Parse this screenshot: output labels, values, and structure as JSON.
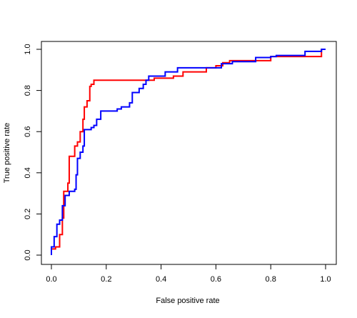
{
  "chart_data": {
    "type": "line",
    "step": true,
    "xlabel": "False positive rate",
    "ylabel": "True positive rate",
    "xlim": [
      0,
      1
    ],
    "ylim": [
      0,
      1
    ],
    "x_ticks": [
      0.0,
      0.2,
      0.4,
      0.6,
      0.8,
      1.0
    ],
    "x_tick_labels": [
      "0.0",
      "0.2",
      "0.4",
      "0.6",
      "0.8",
      "1.0"
    ],
    "y_ticks": [
      0.0,
      0.2,
      0.4,
      0.6,
      0.8,
      1.0
    ],
    "y_tick_labels": [
      "0.0",
      "0.2",
      "0.4",
      "0.6",
      "0.8",
      "1.0"
    ],
    "grid": false,
    "legend": "none",
    "series": [
      {
        "color": "#ff0000",
        "points": [
          [
            0.0,
            0.0
          ],
          [
            0.0,
            0.03
          ],
          [
            0.015,
            0.03
          ],
          [
            0.015,
            0.04
          ],
          [
            0.03,
            0.04
          ],
          [
            0.03,
            0.1
          ],
          [
            0.04,
            0.1
          ],
          [
            0.04,
            0.18
          ],
          [
            0.045,
            0.18
          ],
          [
            0.045,
            0.31
          ],
          [
            0.06,
            0.31
          ],
          [
            0.06,
            0.35
          ],
          [
            0.065,
            0.35
          ],
          [
            0.065,
            0.48
          ],
          [
            0.085,
            0.48
          ],
          [
            0.085,
            0.53
          ],
          [
            0.095,
            0.53
          ],
          [
            0.095,
            0.55
          ],
          [
            0.105,
            0.55
          ],
          [
            0.105,
            0.6
          ],
          [
            0.115,
            0.6
          ],
          [
            0.115,
            0.66
          ],
          [
            0.12,
            0.66
          ],
          [
            0.12,
            0.72
          ],
          [
            0.13,
            0.72
          ],
          [
            0.13,
            0.75
          ],
          [
            0.14,
            0.75
          ],
          [
            0.14,
            0.82
          ],
          [
            0.145,
            0.82
          ],
          [
            0.145,
            0.83
          ],
          [
            0.155,
            0.83
          ],
          [
            0.155,
            0.85
          ],
          [
            0.375,
            0.85
          ],
          [
            0.375,
            0.86
          ],
          [
            0.445,
            0.86
          ],
          [
            0.445,
            0.87
          ],
          [
            0.48,
            0.87
          ],
          [
            0.48,
            0.89
          ],
          [
            0.565,
            0.89
          ],
          [
            0.565,
            0.91
          ],
          [
            0.6,
            0.91
          ],
          [
            0.6,
            0.92
          ],
          [
            0.625,
            0.92
          ],
          [
            0.625,
            0.935
          ],
          [
            0.65,
            0.935
          ],
          [
            0.65,
            0.945
          ],
          [
            0.8,
            0.945
          ],
          [
            0.8,
            0.965
          ],
          [
            0.985,
            0.965
          ],
          [
            0.985,
            1.0
          ],
          [
            1.0,
            1.0
          ]
        ]
      },
      {
        "color": "#0000ff",
        "points": [
          [
            0.0,
            0.0
          ],
          [
            0.0,
            0.04
          ],
          [
            0.01,
            0.04
          ],
          [
            0.01,
            0.09
          ],
          [
            0.02,
            0.09
          ],
          [
            0.02,
            0.15
          ],
          [
            0.03,
            0.15
          ],
          [
            0.03,
            0.17
          ],
          [
            0.04,
            0.17
          ],
          [
            0.04,
            0.24
          ],
          [
            0.05,
            0.24
          ],
          [
            0.05,
            0.29
          ],
          [
            0.065,
            0.29
          ],
          [
            0.065,
            0.31
          ],
          [
            0.085,
            0.31
          ],
          [
            0.085,
            0.32
          ],
          [
            0.09,
            0.32
          ],
          [
            0.09,
            0.39
          ],
          [
            0.095,
            0.39
          ],
          [
            0.095,
            0.47
          ],
          [
            0.105,
            0.47
          ],
          [
            0.105,
            0.5
          ],
          [
            0.115,
            0.5
          ],
          [
            0.115,
            0.53
          ],
          [
            0.12,
            0.53
          ],
          [
            0.12,
            0.61
          ],
          [
            0.145,
            0.61
          ],
          [
            0.145,
            0.62
          ],
          [
            0.155,
            0.62
          ],
          [
            0.155,
            0.63
          ],
          [
            0.165,
            0.63
          ],
          [
            0.165,
            0.66
          ],
          [
            0.18,
            0.66
          ],
          [
            0.18,
            0.7
          ],
          [
            0.24,
            0.7
          ],
          [
            0.24,
            0.71
          ],
          [
            0.255,
            0.71
          ],
          [
            0.255,
            0.72
          ],
          [
            0.285,
            0.72
          ],
          [
            0.285,
            0.74
          ],
          [
            0.295,
            0.74
          ],
          [
            0.295,
            0.79
          ],
          [
            0.32,
            0.79
          ],
          [
            0.32,
            0.81
          ],
          [
            0.335,
            0.81
          ],
          [
            0.335,
            0.83
          ],
          [
            0.345,
            0.83
          ],
          [
            0.345,
            0.85
          ],
          [
            0.355,
            0.85
          ],
          [
            0.355,
            0.87
          ],
          [
            0.415,
            0.87
          ],
          [
            0.415,
            0.89
          ],
          [
            0.46,
            0.89
          ],
          [
            0.46,
            0.91
          ],
          [
            0.62,
            0.91
          ],
          [
            0.62,
            0.93
          ],
          [
            0.66,
            0.93
          ],
          [
            0.66,
            0.94
          ],
          [
            0.745,
            0.94
          ],
          [
            0.745,
            0.96
          ],
          [
            0.8,
            0.96
          ],
          [
            0.8,
            0.965
          ],
          [
            0.82,
            0.965
          ],
          [
            0.82,
            0.97
          ],
          [
            0.925,
            0.97
          ],
          [
            0.925,
            0.99
          ],
          [
            0.985,
            0.99
          ],
          [
            0.985,
            1.0
          ],
          [
            1.0,
            1.0
          ]
        ]
      }
    ]
  }
}
